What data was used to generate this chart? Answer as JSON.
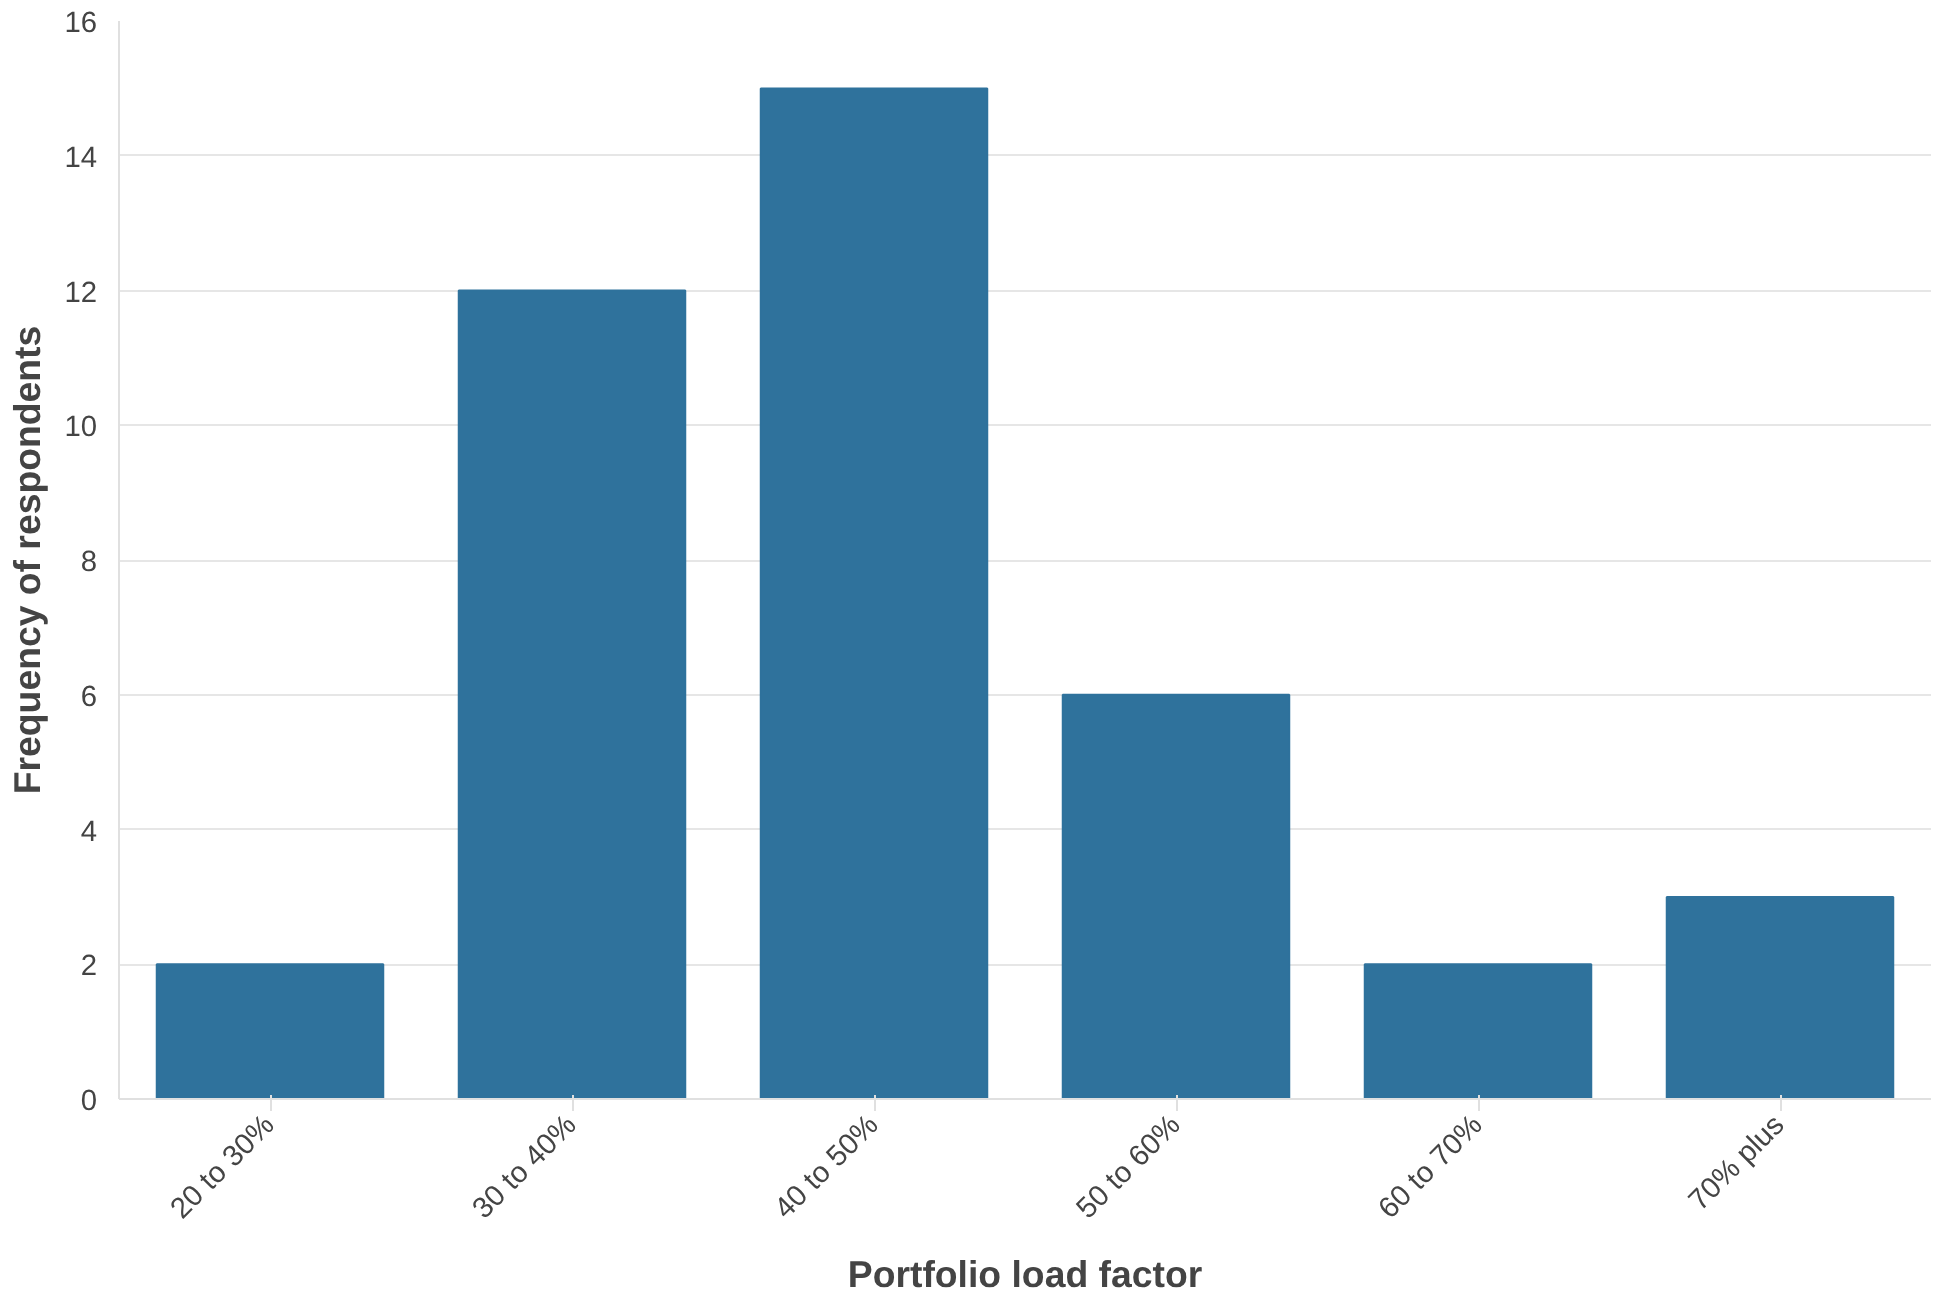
{
  "chart_data": {
    "type": "bar",
    "xlabel": "Portfolio load factor",
    "ylabel": "Frequency of respondents",
    "categories": [
      "20 to 30%",
      "30 to 40%",
      "40 to 50%",
      "50 to 60%",
      "60 to 70%",
      "70% plus"
    ],
    "values": [
      2,
      12,
      15,
      6,
      2,
      3
    ],
    "color": "#2f729c",
    "ylim": [
      0,
      16
    ],
    "yticks": [
      0,
      2,
      4,
      6,
      8,
      10,
      12,
      14,
      16
    ],
    "grid": "y"
  }
}
